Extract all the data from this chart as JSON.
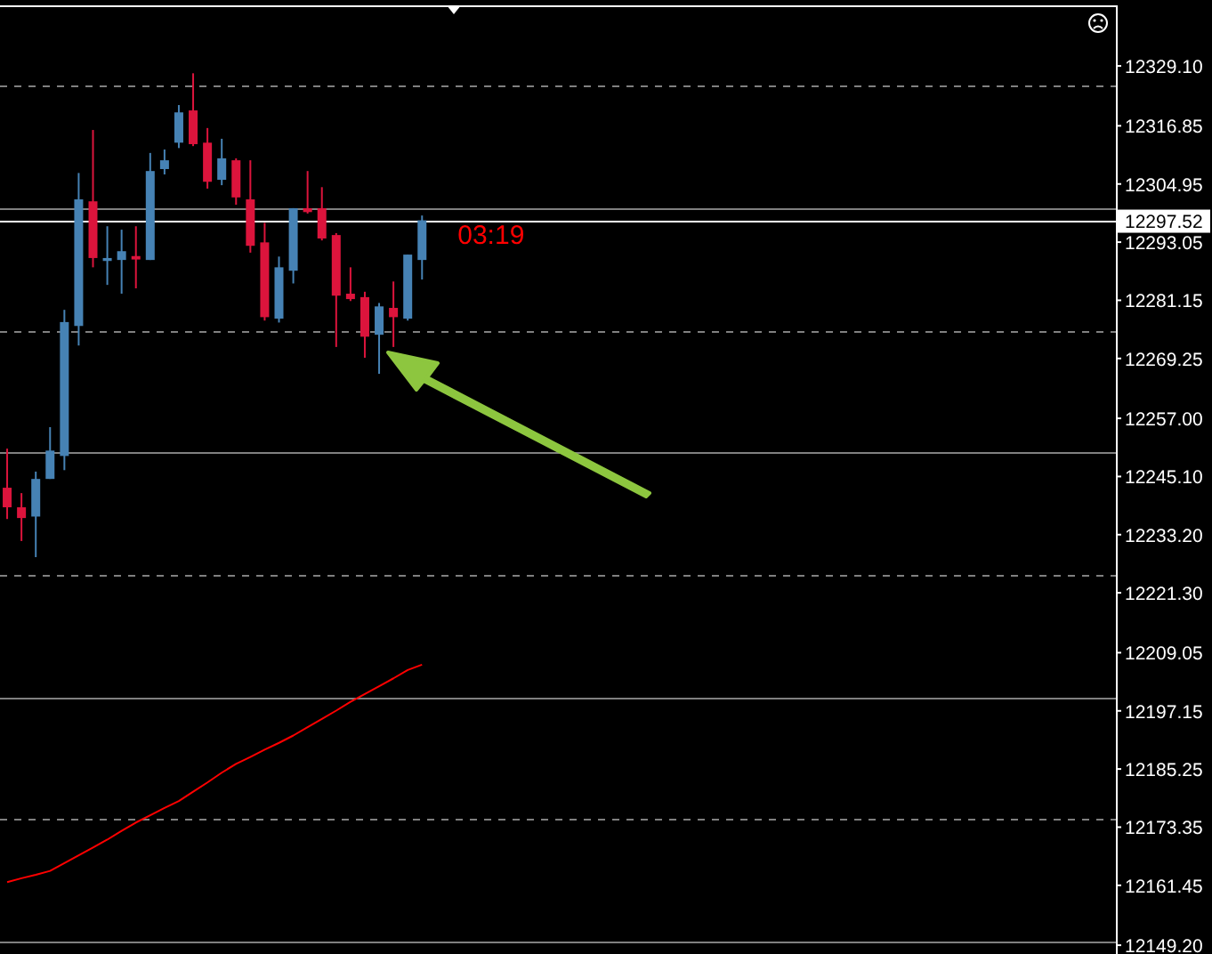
{
  "chart_data": {
    "type": "candlestick",
    "ylim": [
      12147.4,
      12341.5
    ],
    "categories": [
      null,
      null,
      null,
      null,
      null,
      null,
      null,
      null,
      null,
      null,
      null,
      null,
      null,
      null,
      null,
      null,
      null,
      null,
      null,
      null,
      null,
      null,
      null,
      null,
      null,
      null,
      null,
      null,
      null,
      null,
      null,
      null,
      null,
      null,
      null,
      null,
      null,
      null,
      null,
      null,
      null,
      null,
      null,
      null,
      null,
      null,
      null,
      null,
      null,
      null,
      null,
      null,
      null,
      null,
      null,
      null,
      null,
      null,
      null,
      null,
      null,
      null,
      null,
      null,
      null,
      null,
      null,
      null,
      null,
      null,
      null,
      null,
      null,
      null,
      null,
      null,
      null,
      null
    ],
    "yticks": [
      {
        "value": 12329.1,
        "label": "12329.10"
      },
      {
        "value": 12316.85,
        "label": "12316.85"
      },
      {
        "value": 12304.95,
        "label": "12304.95"
      },
      {
        "value": 12293.05,
        "label": "12293.05"
      },
      {
        "value": 12281.15,
        "label": "12281.15"
      },
      {
        "value": 12269.25,
        "label": "12269.25"
      },
      {
        "value": 12257,
        "label": "12257.00"
      },
      {
        "value": 12245.1,
        "label": "12245.10"
      },
      {
        "value": 12233.2,
        "label": "12233.20"
      },
      {
        "value": 12221.3,
        "label": "12221.30"
      },
      {
        "value": 12209.05,
        "label": "12209.05"
      },
      {
        "value": 12197.15,
        "label": "12197.15"
      },
      {
        "value": 12185.25,
        "label": "12185.25"
      },
      {
        "value": 12173.35,
        "label": "12173.35"
      },
      {
        "value": 12161.45,
        "label": "12161.45"
      },
      {
        "value": 12149.2,
        "label": "12149.20"
      }
    ],
    "tick_labels": "y",
    "series": [
      {
        "type": "line",
        "color": "#ff0000",
        "values": [
          12162.1,
          12162.9,
          12163.6,
          12164.4,
          12166.0,
          12167.6,
          12169.2,
          12170.8,
          12172.6,
          12174.3,
          12175.8,
          12177.3,
          12178.7,
          12180.6,
          12182.5,
          12184.5,
          12186.3,
          12187.7,
          12189.2,
          12190.6,
          12192.1,
          12193.8,
          12195.5,
          12197.2,
          12199.0,
          12200.6,
          12202.2,
          12203.8,
          12205.5,
          12206.6,
          null,
          null,
          null,
          null,
          null,
          null,
          null,
          null,
          null,
          null,
          null,
          null,
          null,
          null,
          null,
          null,
          null,
          null,
          null,
          null,
          null,
          null,
          null,
          null,
          null,
          null,
          null,
          null,
          null,
          null,
          null,
          null,
          null,
          null,
          null,
          null,
          null,
          null,
          null,
          null,
          null,
          null,
          null,
          null,
          null,
          null,
          null,
          null
        ]
      },
      {
        "type": "candlestick",
        "colors": [
          "#dc143c",
          "#dc143c",
          "#4682b4",
          "#4682b4",
          "#4682b4",
          "#4682b4",
          "#dc143c",
          "#4682b4",
          "#4682b4",
          "#dc143c",
          "#4682b4",
          "#4682b4",
          "#4682b4",
          "#dc143c",
          "#dc143c",
          "#4682b4",
          "#dc143c",
          "#dc143c",
          "#dc143c",
          "#4682b4",
          "#4682b4",
          "#dc143c",
          "#dc143c",
          "#dc143c",
          "#dc143c",
          "#dc143c",
          "#4682b4",
          "#dc143c",
          "#4682b4",
          "#4682b4",
          null,
          null,
          null,
          null,
          null,
          null,
          null,
          null,
          null,
          null,
          null,
          null,
          null,
          null,
          null,
          null,
          null,
          null,
          null,
          null,
          null,
          null,
          null,
          null,
          null,
          null,
          null,
          null,
          null,
          null,
          null,
          null,
          null,
          null,
          null,
          null,
          null,
          null,
          null,
          null,
          null,
          null,
          null,
          null,
          null,
          null,
          null,
          null
        ],
        "ohlc": [
          [
            12242.8,
            12250.8,
            12236.4,
            12238.8
          ],
          [
            12238.8,
            12241.7,
            12231.9,
            12236.6
          ],
          [
            12236.9,
            12246.1,
            12228.6,
            12244.6
          ],
          [
            12244.6,
            12255.2,
            12244.6,
            12250.4
          ],
          [
            12249.3,
            12279.2,
            12246.4,
            12276.7
          ],
          [
            12275.9,
            12307.2,
            12271.9,
            12301.8
          ],
          [
            12301.4,
            12316.0,
            12287.9,
            12289.8
          ],
          [
            12289.2,
            12296.3,
            12284.3,
            12289.8
          ],
          [
            12289.4,
            12295.6,
            12282.5,
            12291.2
          ],
          [
            12290.2,
            12296.3,
            12283.6,
            12289.5
          ],
          [
            12289.4,
            12311.3,
            12289.4,
            12307.6
          ],
          [
            12308.0,
            12312.0,
            12306.9,
            12309.8
          ],
          [
            12313.4,
            12321.1,
            12312.3,
            12319.6
          ],
          [
            12320.0,
            12327.6,
            12312.7,
            12313.1
          ],
          [
            12313.4,
            12316.4,
            12304.0,
            12305.4
          ],
          [
            12305.8,
            12314.2,
            12304.7,
            12310.2
          ],
          [
            12309.8,
            12310.2,
            12300.7,
            12302.2
          ],
          [
            12301.8,
            12309.8,
            12290.9,
            12292.3
          ],
          [
            12293.0,
            12297.0,
            12277.0,
            12277.7
          ],
          [
            12277.4,
            12290.1,
            12276.6,
            12287.9
          ],
          [
            12287.2,
            12300.0,
            12284.6,
            12300.0
          ],
          [
            12300.0,
            12307.6,
            12298.9,
            12299.2
          ],
          [
            12300.0,
            12304.3,
            12293.4,
            12293.8
          ],
          [
            12294.5,
            12294.9,
            12271.6,
            12282.1
          ],
          [
            12282.5,
            12287.9,
            12281.0,
            12281.4
          ],
          [
            12281.8,
            12282.9,
            12269.4,
            12273.7
          ],
          [
            12274.1,
            12280.6,
            12266.1,
            12279.9
          ],
          [
            12279.6,
            12285.0,
            12271.6,
            12277.7
          ],
          [
            12277.4,
            12290.5,
            12277.0,
            12290.5
          ],
          [
            12289.4,
            12298.5,
            12285.4,
            12297.52
          ],
          null,
          null,
          null,
          null,
          null,
          null,
          null,
          null,
          null,
          null,
          null,
          null,
          null,
          null,
          null,
          null,
          null,
          null,
          null,
          null,
          null,
          null,
          null,
          null,
          null,
          null,
          null,
          null,
          null,
          null,
          null,
          null,
          null,
          null,
          null,
          null,
          null,
          null,
          null,
          null,
          null,
          null,
          null,
          null,
          null,
          null,
          null,
          null
        ]
      }
    ],
    "ref_lines": [
      {
        "axis": "y",
        "value": 12325,
        "color": "#808080",
        "line_style": "dashed"
      },
      {
        "axis": "y",
        "value": 12300,
        "color": "#808080",
        "line_style": "solid"
      },
      {
        "axis": "y",
        "value": 12275,
        "color": "#808080",
        "line_style": "dashed"
      },
      {
        "axis": "y",
        "value": 12250,
        "color": "#808080",
        "line_style": "solid"
      },
      {
        "axis": "y",
        "value": 12225,
        "color": "#808080",
        "line_style": "dashed"
      },
      {
        "axis": "y",
        "value": 12200,
        "color": "#808080",
        "line_style": "solid"
      },
      {
        "axis": "y",
        "value": 12175,
        "color": "#808080",
        "line_style": "dashed"
      },
      {
        "axis": "y",
        "value": 12150,
        "color": "#808080",
        "line_style": "solid"
      },
      {
        "axis": "y",
        "value": 12297.52,
        "label": "12297.52",
        "color": "#ffffff",
        "line_style": "solid"
      }
    ],
    "annotations": [
      {
        "text": "03:19",
        "y": 12297.52
      }
    ]
  }
}
